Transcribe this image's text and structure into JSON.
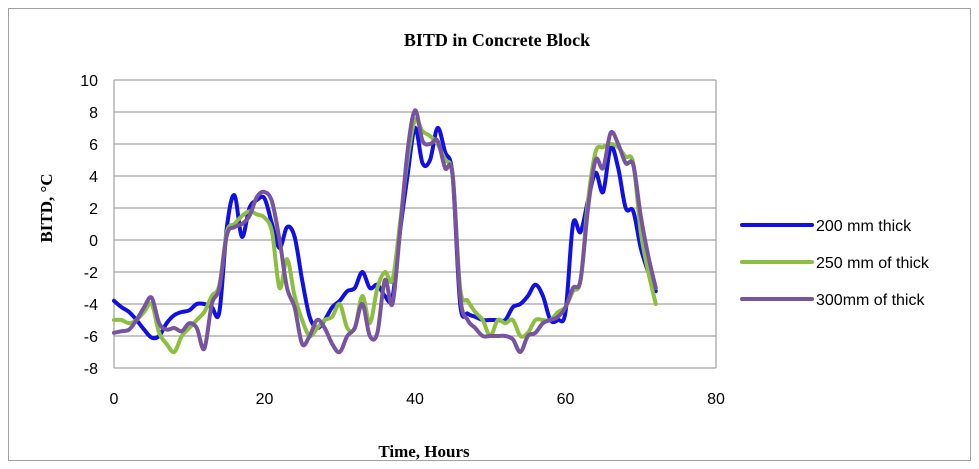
{
  "chart_data": {
    "type": "line",
    "title": "BITD in Concrete Block",
    "xlabel": "Time, Hours",
    "ylabel": "BITD, °C",
    "xlim": [
      0,
      80
    ],
    "ylim": [
      -8,
      10
    ],
    "xticks": [
      0,
      20,
      40,
      60,
      80
    ],
    "yticks": [
      -8,
      -6,
      -4,
      -2,
      0,
      2,
      4,
      6,
      8,
      10
    ],
    "grid": "horizontal",
    "legend_position": "right",
    "series": [
      {
        "name": "200 mm thick",
        "color": "#1010e6",
        "points": [
          [
            0,
            -3.8
          ],
          [
            1,
            -4.2
          ],
          [
            2,
            -4.5
          ],
          [
            3,
            -5.0
          ],
          [
            4,
            -5.6
          ],
          [
            5,
            -6.1
          ],
          [
            6,
            -6.0
          ],
          [
            7,
            -5.2
          ],
          [
            8,
            -4.7
          ],
          [
            9,
            -4.5
          ],
          [
            10,
            -4.4
          ],
          [
            11,
            -4.0
          ],
          [
            12,
            -4.0
          ],
          [
            13,
            -4.2
          ],
          [
            14,
            -4.5
          ],
          [
            15,
            0.8
          ],
          [
            16,
            2.8
          ],
          [
            17,
            0.2
          ],
          [
            18,
            2.0
          ],
          [
            19,
            2.5
          ],
          [
            20,
            2.6
          ],
          [
            21,
            1.0
          ],
          [
            22,
            -0.5
          ],
          [
            23,
            0.8
          ],
          [
            24,
            0.2
          ],
          [
            25,
            -2.5
          ],
          [
            26,
            -4.8
          ],
          [
            27,
            -5.5
          ],
          [
            28,
            -5.0
          ],
          [
            29,
            -4.2
          ],
          [
            30,
            -3.8
          ],
          [
            31,
            -3.2
          ],
          [
            32,
            -3.0
          ],
          [
            33,
            -2.0
          ],
          [
            34,
            -3.0
          ],
          [
            35,
            -2.8
          ],
          [
            36,
            -3.5
          ],
          [
            37,
            -3.6
          ],
          [
            38,
            0.5
          ],
          [
            39,
            4.0
          ],
          [
            40,
            7.0
          ],
          [
            41,
            4.8
          ],
          [
            42,
            5.0
          ],
          [
            43,
            7.0
          ],
          [
            44,
            5.5
          ],
          [
            45,
            4.0
          ],
          [
            46,
            -4.0
          ],
          [
            47,
            -4.6
          ],
          [
            48,
            -4.8
          ],
          [
            49,
            -5.0
          ],
          [
            50,
            -5.0
          ],
          [
            51,
            -5.0
          ],
          [
            52,
            -5.0
          ],
          [
            53,
            -4.2
          ],
          [
            54,
            -4.0
          ],
          [
            55,
            -3.5
          ],
          [
            56,
            -2.8
          ],
          [
            57,
            -3.5
          ],
          [
            58,
            -5.0
          ],
          [
            59,
            -5.0
          ],
          [
            60,
            -4.5
          ],
          [
            61,
            1.0
          ],
          [
            62,
            0.5
          ],
          [
            63,
            2.5
          ],
          [
            64,
            4.2
          ],
          [
            65,
            3.0
          ],
          [
            66,
            5.8
          ],
          [
            67,
            4.5
          ],
          [
            68,
            2.0
          ],
          [
            69,
            1.8
          ],
          [
            70,
            -0.5
          ],
          [
            71,
            -2.0
          ],
          [
            72,
            -3.2
          ]
        ]
      },
      {
        "name": "250 mm of thick",
        "color": "#8cbf3f",
        "points": [
          [
            0,
            -5.0
          ],
          [
            1,
            -5.0
          ],
          [
            2,
            -5.2
          ],
          [
            3,
            -5.0
          ],
          [
            4,
            -4.5
          ],
          [
            5,
            -4.0
          ],
          [
            6,
            -5.8
          ],
          [
            7,
            -6.5
          ],
          [
            8,
            -7.0
          ],
          [
            9,
            -6.0
          ],
          [
            10,
            -5.5
          ],
          [
            11,
            -5.0
          ],
          [
            12,
            -4.5
          ],
          [
            13,
            -3.5
          ],
          [
            14,
            -2.8
          ],
          [
            15,
            0.5
          ],
          [
            16,
            1.0
          ],
          [
            17,
            1.5
          ],
          [
            18,
            1.8
          ],
          [
            19,
            1.6
          ],
          [
            20,
            1.4
          ],
          [
            21,
            0.5
          ],
          [
            22,
            -3.0
          ],
          [
            23,
            -1.2
          ],
          [
            24,
            -3.5
          ],
          [
            25,
            -5.0
          ],
          [
            26,
            -6.0
          ],
          [
            27,
            -5.5
          ],
          [
            28,
            -5.0
          ],
          [
            29,
            -4.8
          ],
          [
            30,
            -4.0
          ],
          [
            31,
            -5.5
          ],
          [
            32,
            -5.5
          ],
          [
            33,
            -3.5
          ],
          [
            34,
            -5.2
          ],
          [
            35,
            -3.0
          ],
          [
            36,
            -2.0
          ],
          [
            37,
            -2.5
          ],
          [
            38,
            1.0
          ],
          [
            39,
            5.0
          ],
          [
            40,
            7.5
          ],
          [
            41,
            6.8
          ],
          [
            42,
            6.5
          ],
          [
            43,
            6.0
          ],
          [
            44,
            5.0
          ],
          [
            45,
            4.0
          ],
          [
            46,
            -3.0
          ],
          [
            47,
            -3.8
          ],
          [
            48,
            -4.5
          ],
          [
            49,
            -5.0
          ],
          [
            50,
            -6.0
          ],
          [
            51,
            -5.0
          ],
          [
            52,
            -5.2
          ],
          [
            53,
            -5.0
          ],
          [
            54,
            -6.0
          ],
          [
            55,
            -5.8
          ],
          [
            56,
            -5.0
          ],
          [
            57,
            -5.0
          ],
          [
            58,
            -5.0
          ],
          [
            59,
            -4.5
          ],
          [
            60,
            -4.2
          ],
          [
            61,
            -3.2
          ],
          [
            62,
            -2.5
          ],
          [
            63,
            2.5
          ],
          [
            64,
            5.5
          ],
          [
            65,
            5.8
          ],
          [
            66,
            6.0
          ],
          [
            67,
            5.8
          ],
          [
            68,
            5.2
          ],
          [
            69,
            4.8
          ],
          [
            70,
            0.5
          ],
          [
            71,
            -2.0
          ],
          [
            72,
            -4.0
          ]
        ]
      },
      {
        "name": "300mm of thick",
        "color": "#7754a0",
        "points": [
          [
            0,
            -5.8
          ],
          [
            1,
            -5.7
          ],
          [
            2,
            -5.6
          ],
          [
            3,
            -5.0
          ],
          [
            4,
            -4.2
          ],
          [
            5,
            -3.6
          ],
          [
            6,
            -5.2
          ],
          [
            7,
            -5.6
          ],
          [
            8,
            -5.5
          ],
          [
            9,
            -5.7
          ],
          [
            10,
            -5.2
          ],
          [
            11,
            -5.5
          ],
          [
            12,
            -6.8
          ],
          [
            13,
            -4.0
          ],
          [
            14,
            -3.0
          ],
          [
            15,
            0.3
          ],
          [
            16,
            0.8
          ],
          [
            17,
            1.0
          ],
          [
            18,
            1.5
          ],
          [
            19,
            2.7
          ],
          [
            20,
            3.0
          ],
          [
            21,
            2.4
          ],
          [
            22,
            0.0
          ],
          [
            23,
            -3.0
          ],
          [
            24,
            -4.2
          ],
          [
            25,
            -6.5
          ],
          [
            26,
            -6.0
          ],
          [
            27,
            -5.0
          ],
          [
            28,
            -5.5
          ],
          [
            29,
            -6.5
          ],
          [
            30,
            -7.0
          ],
          [
            31,
            -6.0
          ],
          [
            32,
            -5.5
          ],
          [
            33,
            -4.0
          ],
          [
            34,
            -6.0
          ],
          [
            35,
            -5.8
          ],
          [
            36,
            -2.5
          ],
          [
            37,
            -4.0
          ],
          [
            38,
            0.5
          ],
          [
            39,
            5.5
          ],
          [
            40,
            8.1
          ],
          [
            41,
            6.2
          ],
          [
            42,
            6.0
          ],
          [
            43,
            6.2
          ],
          [
            44,
            4.5
          ],
          [
            45,
            4.1
          ],
          [
            46,
            -3.5
          ],
          [
            47,
            -5.0
          ],
          [
            48,
            -5.5
          ],
          [
            49,
            -6.0
          ],
          [
            50,
            -6.0
          ],
          [
            51,
            -6.0
          ],
          [
            52,
            -6.0
          ],
          [
            53,
            -6.2
          ],
          [
            54,
            -7.0
          ],
          [
            55,
            -6.0
          ],
          [
            56,
            -5.8
          ],
          [
            57,
            -5.2
          ],
          [
            58,
            -5.0
          ],
          [
            59,
            -4.8
          ],
          [
            60,
            -4.2
          ],
          [
            61,
            -3.0
          ],
          [
            62,
            -2.5
          ],
          [
            63,
            2.0
          ],
          [
            64,
            5.0
          ],
          [
            65,
            4.5
          ],
          [
            66,
            6.7
          ],
          [
            67,
            6.0
          ],
          [
            68,
            4.8
          ],
          [
            69,
            4.7
          ],
          [
            70,
            1.5
          ],
          [
            71,
            -1.0
          ],
          [
            72,
            -3.0
          ]
        ]
      }
    ]
  }
}
